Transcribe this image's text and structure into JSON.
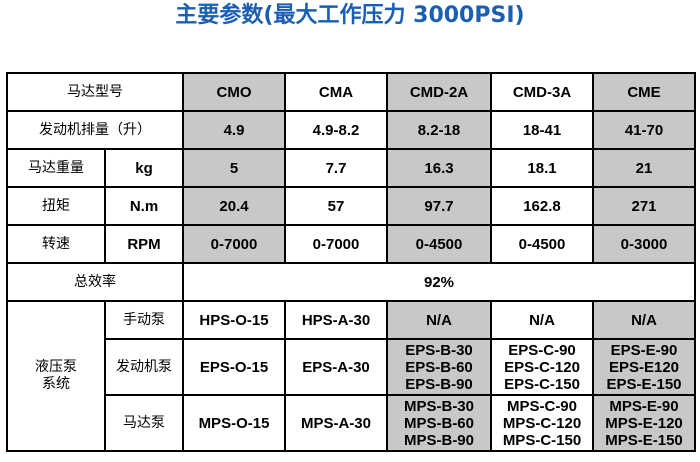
{
  "title": "主要参数(最大工作压力 3000PSI)",
  "colors": {
    "title": "#1a5fb4",
    "header_gray": "#c8c8c8"
  },
  "table": {
    "model_label": "马达型号",
    "models": [
      "CMO",
      "CMA",
      "CMD-2A",
      "CMD-3A",
      "CME"
    ],
    "displacement": {
      "label": "发动机排量（升）",
      "values": [
        "4.9",
        "4.9-8.2",
        "8.2-18",
        "18-41",
        "41-70"
      ]
    },
    "weight": {
      "label": "马达重量",
      "unit": "kg",
      "values": [
        "5",
        "7.7",
        "16.3",
        "18.1",
        "21"
      ]
    },
    "torque": {
      "label": "扭矩",
      "unit": "N.m",
      "values": [
        "20.4",
        "57",
        "97.7",
        "162.8",
        "271"
      ]
    },
    "speed": {
      "label": "转速",
      "unit": "RPM",
      "values": [
        "0-7000",
        "0-7000",
        "0-4500",
        "0-4500",
        "0-3000"
      ]
    },
    "efficiency": {
      "label": "总效率",
      "value": "92%"
    },
    "pump_system": {
      "label_line1": "液压泵",
      "label_line2": "系统",
      "manual": {
        "label": "手动泵",
        "values": [
          [
            "HPS-O-15"
          ],
          [
            "HPS-A-30"
          ],
          [
            "N/A"
          ],
          [
            "N/A"
          ],
          [
            "N/A"
          ]
        ]
      },
      "engine": {
        "label": "发动机泵",
        "values": [
          [
            "EPS-O-15"
          ],
          [
            "EPS-A-30"
          ],
          [
            "EPS-B-30",
            "EPS-B-60",
            "EPS-B-90"
          ],
          [
            "EPS-C-90",
            "EPS-C-120",
            "EPS-C-150"
          ],
          [
            "EPS-E-90",
            "EPS-E120",
            "EPS-E-150"
          ]
        ]
      },
      "motor": {
        "label": "马达泵",
        "values": [
          [
            "MPS-O-15"
          ],
          [
            "MPS-A-30"
          ],
          [
            "MPS-B-30",
            "MPS-B-60",
            "MPS-B-90"
          ],
          [
            "MPS-C-90",
            "MPS-C-120",
            "MPS-C-150"
          ],
          [
            "MPS-E-90",
            "MPS-E-120",
            "MPS-E-150"
          ]
        ]
      }
    }
  }
}
